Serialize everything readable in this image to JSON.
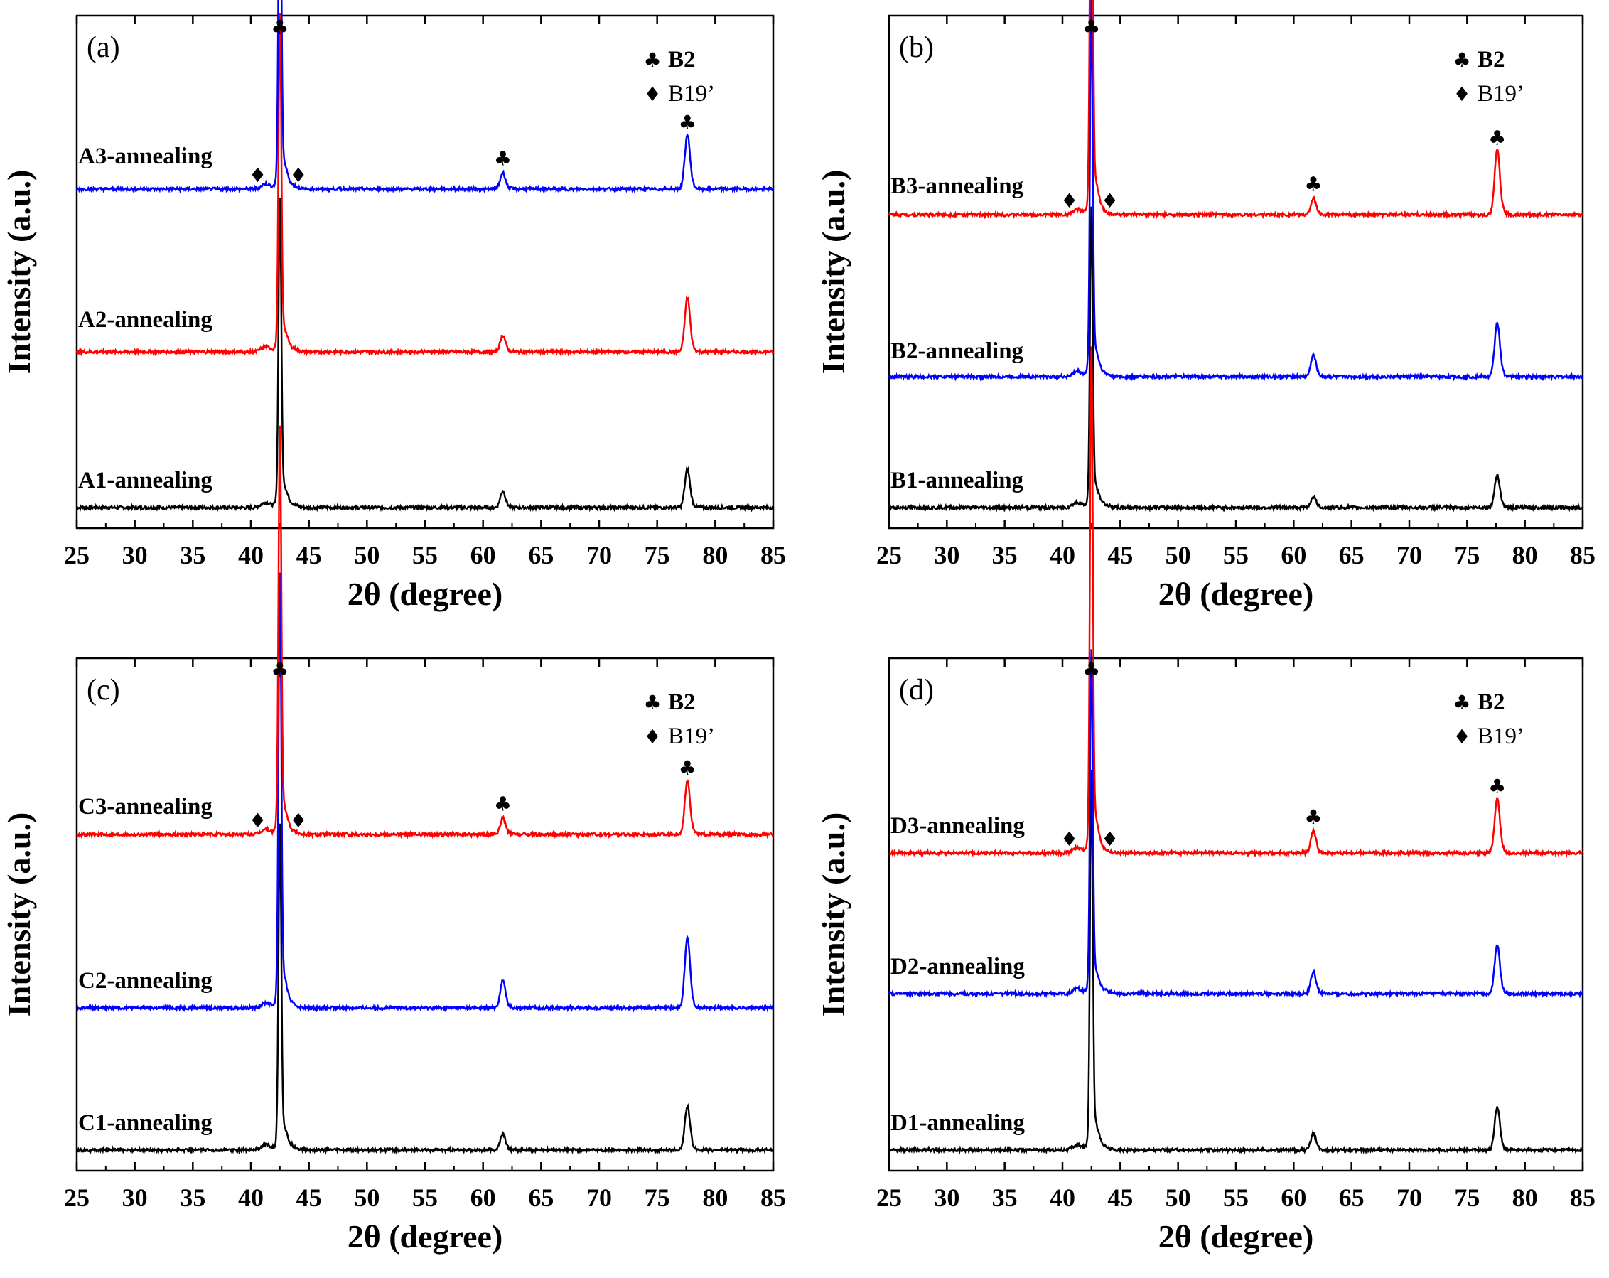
{
  "figure": {
    "xlabel": "2θ (degree)",
    "ylabel": "Intensity (a.u.)",
    "x_ticks": [
      25,
      30,
      35,
      40,
      45,
      50,
      55,
      60,
      65,
      70,
      75,
      80,
      85
    ],
    "xlim": [
      25,
      85
    ],
    "colors": {
      "black": "#000000",
      "red": "#ff0000",
      "blue": "#0000ff"
    },
    "legend": {
      "b2_symbol": "♣",
      "b2_label": "B2",
      "b19_symbol": "♦",
      "b19_label": "B19’"
    },
    "markers": {
      "club": "♣",
      "diamond": "♦"
    },
    "peak_markers": {
      "b19_at_degrees": [
        41.2,
        43.6
      ],
      "b2_at_degrees": [
        42.5,
        61.7,
        77.6
      ]
    }
  },
  "chart_data": [
    {
      "type": "line",
      "panel_label": "(a)",
      "title": "",
      "xlabel": "2θ (degree)",
      "ylabel": "Intensity (a.u.)",
      "xlim": [
        25,
        85
      ],
      "series": [
        {
          "name": "A1-annealing",
          "color": "#000000",
          "offset": 0,
          "peaks": [
            {
              "x": 42.5,
              "height": 0.57
            },
            {
              "x": 61.7,
              "height": 0.03
            },
            {
              "x": 77.6,
              "height": 0.07
            }
          ]
        },
        {
          "name": "A2-annealing",
          "color": "#ff0000",
          "offset": 1,
          "peaks": [
            {
              "x": 42.5,
              "height": 0.62
            },
            {
              "x": 61.7,
              "height": 0.03
            },
            {
              "x": 77.6,
              "height": 0.1
            }
          ]
        },
        {
          "name": "A3-annealing",
          "color": "#0000ff",
          "offset": 2,
          "peaks": [
            {
              "x": 42.5,
              "height": 0.68
            },
            {
              "x": 61.7,
              "height": 0.03
            },
            {
              "x": 77.6,
              "height": 0.1
            }
          ]
        }
      ]
    },
    {
      "type": "line",
      "panel_label": "(b)",
      "title": "",
      "xlabel": "2θ (degree)",
      "ylabel": "Intensity (a.u.)",
      "xlim": [
        25,
        85
      ],
      "series": [
        {
          "name": "B1-annealing",
          "color": "#000000",
          "offset": 0,
          "peaks": [
            {
              "x": 42.5,
              "height": 0.55
            },
            {
              "x": 61.7,
              "height": 0.02
            },
            {
              "x": 77.6,
              "height": 0.06
            }
          ]
        },
        {
          "name": "B2-annealing",
          "color": "#0000ff",
          "offset": 1,
          "peaks": [
            {
              "x": 42.5,
              "height": 0.7
            },
            {
              "x": 61.7,
              "height": 0.04
            },
            {
              "x": 77.6,
              "height": 0.1
            }
          ]
        },
        {
          "name": "B3-annealing",
          "color": "#ff0000",
          "offset": 2,
          "peaks": [
            {
              "x": 42.5,
              "height": 0.85
            },
            {
              "x": 61.7,
              "height": 0.03
            },
            {
              "x": 77.6,
              "height": 0.12
            }
          ]
        }
      ]
    },
    {
      "type": "line",
      "panel_label": "(c)",
      "title": "",
      "xlabel": "2θ (degree)",
      "ylabel": "Intensity (a.u.)",
      "xlim": [
        25,
        85
      ],
      "series": [
        {
          "name": "C1-annealing",
          "color": "#000000",
          "offset": 0,
          "peaks": [
            {
              "x": 42.5,
              "height": 0.6
            },
            {
              "x": 61.7,
              "height": 0.03
            },
            {
              "x": 77.6,
              "height": 0.08
            }
          ]
        },
        {
          "name": "C2-annealing",
          "color": "#0000ff",
          "offset": 1,
          "peaks": [
            {
              "x": 42.5,
              "height": 0.8
            },
            {
              "x": 61.7,
              "height": 0.05
            },
            {
              "x": 77.6,
              "height": 0.13
            }
          ]
        },
        {
          "name": "C3-annealing",
          "color": "#ff0000",
          "offset": 2,
          "peaks": [
            {
              "x": 42.5,
              "height": 0.75
            },
            {
              "x": 61.7,
              "height": 0.03
            },
            {
              "x": 77.6,
              "height": 0.1
            }
          ]
        }
      ]
    },
    {
      "type": "line",
      "panel_label": "(d)",
      "title": "",
      "xlabel": "2θ (degree)",
      "ylabel": "Intensity (a.u.)",
      "xlim": [
        25,
        85
      ],
      "series": [
        {
          "name": "D1-annealing",
          "color": "#000000",
          "offset": 0,
          "peaks": [
            {
              "x": 42.5,
              "height": 0.7
            },
            {
              "x": 61.7,
              "height": 0.03
            },
            {
              "x": 77.6,
              "height": 0.08
            }
          ]
        },
        {
          "name": "D2-annealing",
          "color": "#0000ff",
          "offset": 1,
          "peaks": [
            {
              "x": 42.5,
              "height": 0.63
            },
            {
              "x": 61.7,
              "height": 0.04
            },
            {
              "x": 77.6,
              "height": 0.09
            }
          ]
        },
        {
          "name": "D3-annealing",
          "color": "#ff0000",
          "offset": 2,
          "peaks": [
            {
              "x": 42.5,
              "height": 0.93
            },
            {
              "x": 61.7,
              "height": 0.04
            },
            {
              "x": 77.6,
              "height": 0.1
            }
          ]
        }
      ]
    }
  ]
}
